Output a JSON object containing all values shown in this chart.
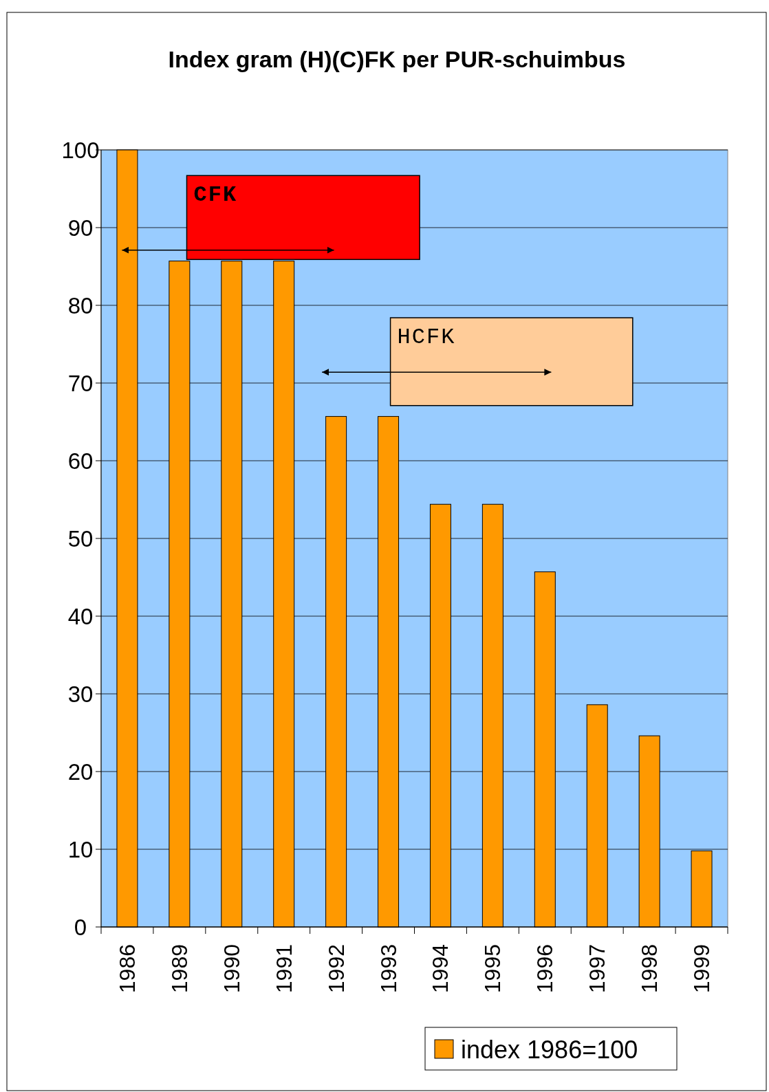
{
  "chart_data": {
    "type": "bar",
    "title": "Index gram (H)(C)FK per PUR-schuimbus",
    "categories": [
      "1986",
      "1989",
      "1990",
      "1991",
      "1992",
      "1993",
      "1994",
      "1995",
      "1996",
      "1997",
      "1998",
      "1999"
    ],
    "series": [
      {
        "name": "index 1986=100",
        "color": "#ff9900",
        "values": [
          100,
          85.7,
          85.7,
          85.7,
          65.7,
          65.7,
          54.4,
          54.4,
          45.7,
          28.6,
          24.6,
          9.8
        ]
      }
    ],
    "ylim": [
      0,
      100
    ],
    "yticks": [
      0,
      10,
      20,
      30,
      40,
      50,
      60,
      70,
      80,
      90,
      100
    ],
    "grid": "y",
    "legend": "bottom right",
    "annotations": [
      "CFK",
      "HCFK"
    ]
  }
}
